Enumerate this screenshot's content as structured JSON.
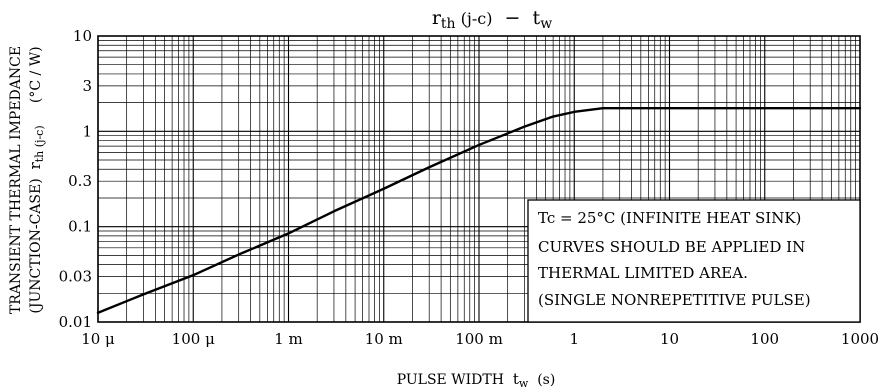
{
  "chart_data": {
    "type": "line",
    "title": {
      "main": "r",
      "main_sub": "th",
      "paren": " (j-c)",
      "dash": "  −  ",
      "var": "t",
      "var_sub": "w"
    },
    "xlabel": {
      "text": "PULSE WIDTH",
      "var": "t",
      "var_sub": "w",
      "unit": "(s)"
    },
    "ylabel": {
      "line1": "TRANSIENT THERMAL IMPEDANCE",
      "line2_pre": "(JUNCTION-CASE)",
      "var": "r",
      "var_sub": "th (j-c)",
      "unit": "(°C / W)"
    },
    "x_scale": "log",
    "y_scale": "log",
    "xlim": [
      1e-05,
      1000
    ],
    "ylim": [
      0.01,
      10
    ],
    "grid": true,
    "x_ticks": [
      {
        "value": 1e-05,
        "label": "10 μ"
      },
      {
        "value": 0.0001,
        "label": "100 μ"
      },
      {
        "value": 0.001,
        "label": "1 m"
      },
      {
        "value": 0.01,
        "label": "10 m"
      },
      {
        "value": 0.1,
        "label": "100 m"
      },
      {
        "value": 1,
        "label": "1"
      },
      {
        "value": 10,
        "label": "10"
      },
      {
        "value": 100,
        "label": "100"
      },
      {
        "value": 1000,
        "label": "1000"
      }
    ],
    "y_ticks": [
      {
        "value": 10,
        "label": "10"
      },
      {
        "value": 3,
        "label": "3"
      },
      {
        "value": 1,
        "label": "1"
      },
      {
        "value": 0.3,
        "label": "0.3"
      },
      {
        "value": 0.1,
        "label": "0.1"
      },
      {
        "value": 0.03,
        "label": "0.03"
      },
      {
        "value": 0.01,
        "label": "0.01"
      }
    ],
    "series": [
      {
        "x": [
          1e-05,
          3e-05,
          0.0001,
          0.0003,
          0.001,
          0.003,
          0.01,
          0.03,
          0.1,
          0.3,
          0.6,
          1,
          2,
          3,
          10,
          100,
          1000
        ],
        "y": [
          0.0125,
          0.0195,
          0.031,
          0.051,
          0.085,
          0.145,
          0.25,
          0.42,
          0.72,
          1.12,
          1.43,
          1.6,
          1.75,
          1.75,
          1.75,
          1.75,
          1.75
        ]
      }
    ],
    "annotation": [
      "Tc = 25°C (INFINITE HEAT SINK)",
      "CURVES SHOULD BE APPLIED IN",
      "THERMAL LIMITED AREA.",
      "(SINGLE NONREPETITIVE PULSE)"
    ]
  }
}
